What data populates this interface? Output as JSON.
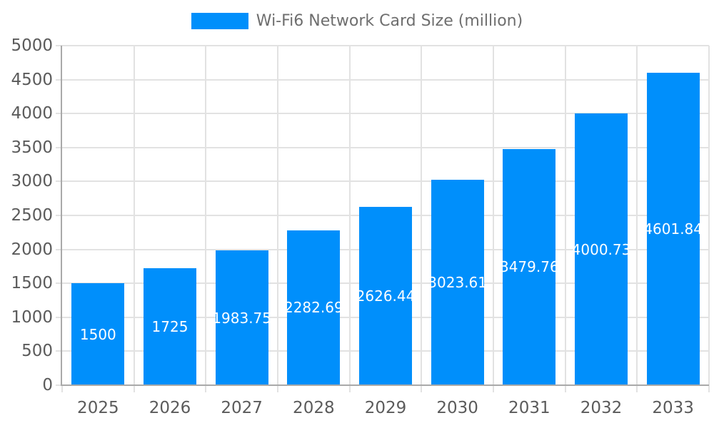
{
  "chart_data": {
    "type": "bar",
    "title": "",
    "legend_label": "Wi-Fi6 Network Card Size (million)",
    "legend_position": "top-center",
    "categories": [
      "2025",
      "2026",
      "2027",
      "2028",
      "2029",
      "2030",
      "2031",
      "2032",
      "2033"
    ],
    "series": [
      {
        "name": "Wi-Fi6 Network Card Size (million)",
        "values": [
          1500,
          1725,
          1983.75,
          2282.69,
          2626.44,
          3023.61,
          3479.76,
          4000.73,
          4601.84
        ],
        "value_labels": [
          "1500",
          "1725",
          "1983.75",
          "2282.69",
          "2626.44",
          "3023.61",
          "3479.76",
          "4000.73",
          "4601.84"
        ]
      }
    ],
    "xlabel": "",
    "ylabel": "",
    "ylim": [
      0,
      5000
    ],
    "ytick_step": 500,
    "ytick_labels": [
      "0",
      "500",
      "1000",
      "1500",
      "2000",
      "2500",
      "3000",
      "3500",
      "4000",
      "4500",
      "5000"
    ],
    "grid": true,
    "colors": {
      "bar": "#008ffb",
      "grid": "#e2e2e2",
      "axis": "#a9a9a9",
      "tick_label": "#5b5b5b",
      "legend_text": "#6e6e6e",
      "value_label": "#ffffff",
      "background": "#ffffff"
    }
  }
}
